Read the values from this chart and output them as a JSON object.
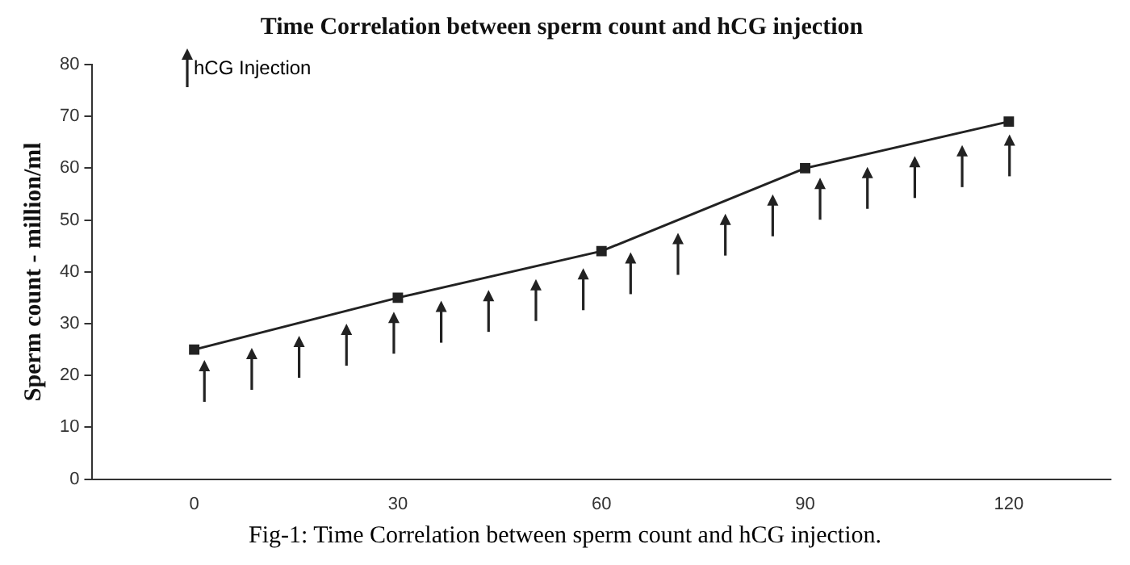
{
  "chart_data": {
    "type": "line",
    "title": "Time Correlation between sperm count and hCG injection",
    "ylabel": "Sperm count - million/ml",
    "categories": [
      "0",
      "30",
      "60",
      "90",
      "120"
    ],
    "series": [
      {
        "color": "#222222",
        "values": [
          25,
          35,
          44,
          60,
          69
        ]
      }
    ],
    "ylim": [
      0,
      80
    ],
    "yticks": [
      0,
      10,
      20,
      30,
      40,
      50,
      60,
      70,
      80
    ],
    "grid": false,
    "legend": false,
    "marker": "square",
    "line_style": "solid",
    "annotations": [
      "hCG Injection",
      "Fig-1: Time Correlation between sperm count and hCG injection."
    ]
  }
}
